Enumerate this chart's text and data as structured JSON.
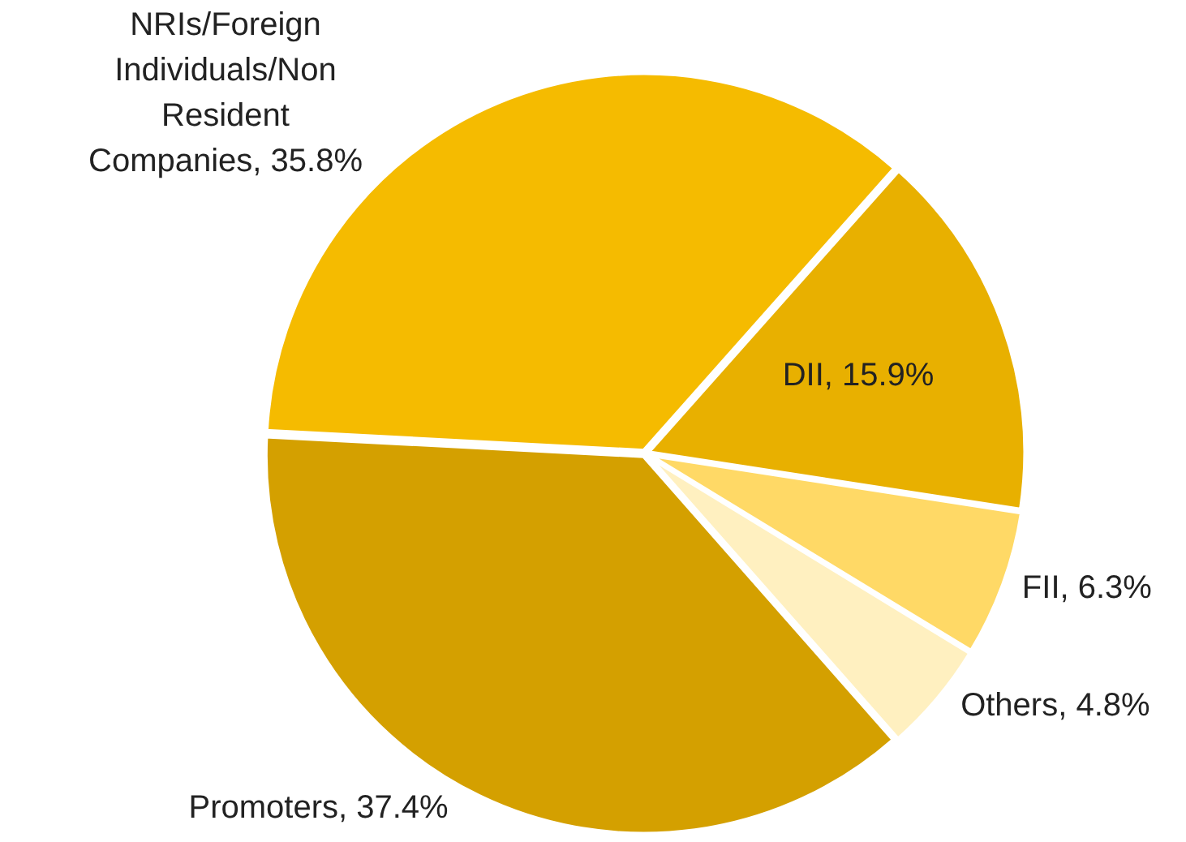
{
  "chart_data": {
    "type": "pie",
    "categories": [
      "NRIs/Foreign Individuals/Non Resident Companies",
      "DII",
      "FII",
      "Others",
      "Promoters"
    ],
    "values": [
      35.8,
      15.9,
      6.3,
      4.8,
      37.4
    ],
    "value_labels": [
      "35.8%",
      "15.9%",
      "6.3%",
      "4.8%",
      "37.4%"
    ],
    "colors": [
      "#f5bb00",
      "#e8b000",
      "#ffd966",
      "#fff0c0",
      "#d4a000"
    ],
    "legend": false
  }
}
